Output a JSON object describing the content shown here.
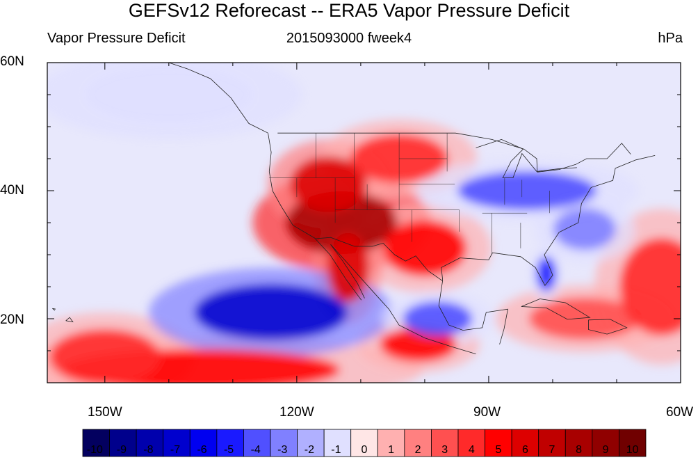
{
  "header": {
    "title": "GEFSv12 Reforecast -- ERA5 Vapor Pressure Deficit",
    "left": "Vapor Pressure Deficit",
    "center": "2015093000 fweek4",
    "right": "hPa"
  },
  "map": {
    "lat_labels": [
      "60N",
      "40N",
      "20N"
    ],
    "lon_labels": [
      "150W",
      "120W",
      "90W",
      "60W"
    ],
    "lon_range": [
      -159,
      -60
    ],
    "lat_range": [
      10,
      60
    ],
    "anomalies": [
      {
        "region": "southwest-us",
        "lon": -113,
        "lat": 35,
        "value": 8
      },
      {
        "region": "great-basin",
        "lon": -115,
        "lat": 41,
        "value": 6
      },
      {
        "region": "northern-plains",
        "lon": -104,
        "lat": 45,
        "value": 4
      },
      {
        "region": "texas",
        "lon": -100,
        "lat": 31,
        "value": 5
      },
      {
        "region": "baja-california",
        "lon": -112,
        "lat": 28,
        "value": 6
      },
      {
        "region": "southern-mexico-coast",
        "lon": -101,
        "lat": 16,
        "value": 5
      },
      {
        "region": "tropical-pacific-south",
        "lon": -135,
        "lat": 12,
        "value": 5
      },
      {
        "region": "tropical-pacific-west",
        "lon": -150,
        "lat": 14,
        "value": 4
      },
      {
        "region": "caribbean",
        "lon": -75,
        "lat": 20,
        "value": 3
      },
      {
        "region": "tropical-atlantic",
        "lon": -63,
        "lat": 25,
        "value": 4
      },
      {
        "region": "ohio-valley",
        "lon": -84,
        "lat": 40,
        "value": -4
      },
      {
        "region": "florida",
        "lon": -81,
        "lat": 27,
        "value": -5
      },
      {
        "region": "western-atlantic",
        "lon": -75,
        "lat": 34,
        "value": -3
      },
      {
        "region": "subtropical-pacific",
        "lon": -124,
        "lat": 21,
        "value": -7
      },
      {
        "region": "mexico-highlands",
        "lon": -98,
        "lat": 20,
        "value": -4
      },
      {
        "region": "gulf-of-alaska",
        "lon": -140,
        "lat": 55,
        "value": -1
      }
    ]
  },
  "colorbar": {
    "labels": [
      "-10",
      "-9",
      "-8",
      "-7",
      "-6",
      "-5",
      "-4",
      "-3",
      "-2",
      "-1",
      "0",
      "1",
      "2",
      "3",
      "4",
      "5",
      "6",
      "7",
      "8",
      "9",
      "10"
    ],
    "colors": [
      "#03005f",
      "#00008c",
      "#0000ad",
      "#0000ce",
      "#0000f0",
      "#1a1aff",
      "#5050ff",
      "#8080ff",
      "#b0b0ff",
      "#e0e0ff",
      "#ffe6e6",
      "#ffb0b0",
      "#ff8080",
      "#ff5050",
      "#ff2a2a",
      "#ff0000",
      "#dd0000",
      "#c00000",
      "#a80000",
      "#900000",
      "#700000"
    ]
  }
}
